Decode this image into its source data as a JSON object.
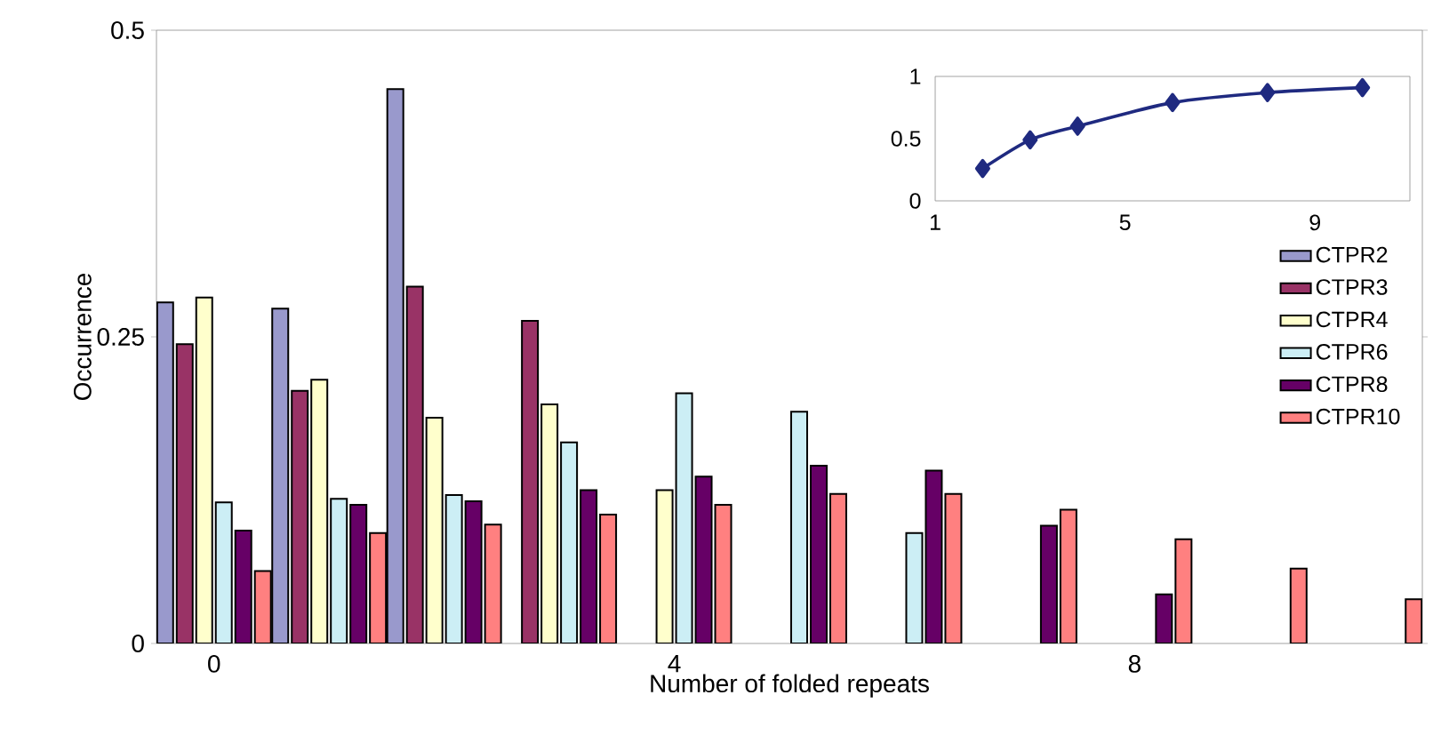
{
  "chart_data": [
    {
      "type": "bar",
      "xlabel": "Number of folded repeats",
      "ylabel": "Occurrence",
      "categories": [
        "0",
        null,
        null,
        null,
        "4",
        null,
        null,
        null,
        "8",
        null,
        null
      ],
      "ylim": [
        0,
        0.5
      ],
      "yticks": [
        0,
        0.25,
        0.5
      ],
      "legend": "right",
      "series": [
        {
          "name": "CTPR2",
          "color": "#9999cc",
          "values": [
            0.278,
            0.273,
            0.452,
            null,
            null,
            null,
            null,
            null,
            null,
            null,
            null
          ]
        },
        {
          "name": "CTPR3",
          "color": "#993366",
          "values": [
            0.244,
            0.206,
            0.291,
            0.263,
            null,
            null,
            null,
            null,
            null,
            null,
            null
          ]
        },
        {
          "name": "CTPR4",
          "color": "#ffffcc",
          "values": [
            0.282,
            0.215,
            0.184,
            0.195,
            0.125,
            null,
            null,
            null,
            null,
            null,
            null
          ]
        },
        {
          "name": "CTPR6",
          "color": "#cceef5",
          "values": [
            0.115,
            0.118,
            0.121,
            0.164,
            0.204,
            0.189,
            0.09,
            null,
            null,
            null,
            null
          ]
        },
        {
          "name": "CTPR8",
          "color": "#660066",
          "values": [
            0.092,
            0.113,
            0.116,
            0.125,
            0.136,
            0.145,
            0.141,
            0.096,
            0.04,
            null,
            null
          ]
        },
        {
          "name": "CTPR10",
          "color": "#ff8080",
          "values": [
            0.059,
            0.09,
            0.097,
            0.105,
            0.113,
            0.122,
            0.122,
            0.109,
            0.085,
            0.061,
            0.036
          ]
        }
      ]
    },
    {
      "type": "line",
      "x": [
        2,
        3,
        4,
        6,
        8,
        10
      ],
      "xlim": [
        1,
        11
      ],
      "xticks": [
        1,
        5,
        9
      ],
      "ylim": [
        0,
        1
      ],
      "yticks": [
        0,
        0.5,
        1
      ],
      "marker": "diamond",
      "series": [
        {
          "color": "#1f2a80",
          "values": [
            0.26,
            0.49,
            0.6,
            0.79,
            0.87,
            0.91
          ]
        }
      ]
    }
  ]
}
